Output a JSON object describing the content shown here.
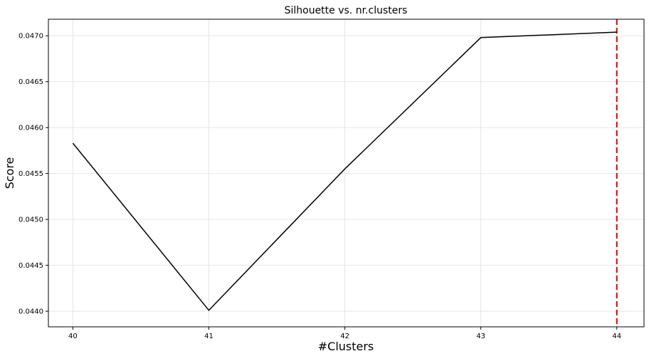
{
  "chart_data": {
    "type": "line",
    "title": "Silhouette vs. nr.clusters",
    "xlabel": "#Clusters",
    "ylabel": "Score",
    "x": [
      40,
      41,
      42,
      43,
      44
    ],
    "series": [
      {
        "values": [
          0.04583,
          0.04401,
          0.04555,
          0.04698,
          0.04704
        ],
        "color": "#000000"
      }
    ],
    "xlim": [
      39.82,
      44.2
    ],
    "ylim": [
      0.04383,
      0.04718
    ],
    "xticks": [
      40,
      41,
      42,
      43,
      44
    ],
    "xtick_labels": [
      "40",
      "41",
      "42",
      "43",
      "44"
    ],
    "yticks": [
      0.044,
      0.0445,
      0.045,
      0.0455,
      0.046,
      0.0465,
      0.047
    ],
    "ytick_labels": [
      "0.0440",
      "0.0445",
      "0.0450",
      "0.0455",
      "0.0460",
      "0.0465",
      "0.0470"
    ],
    "grid": true,
    "reference_lines": [
      {
        "orientation": "vertical",
        "x": 44,
        "style": "dashed",
        "color": "#dd0000"
      }
    ]
  }
}
